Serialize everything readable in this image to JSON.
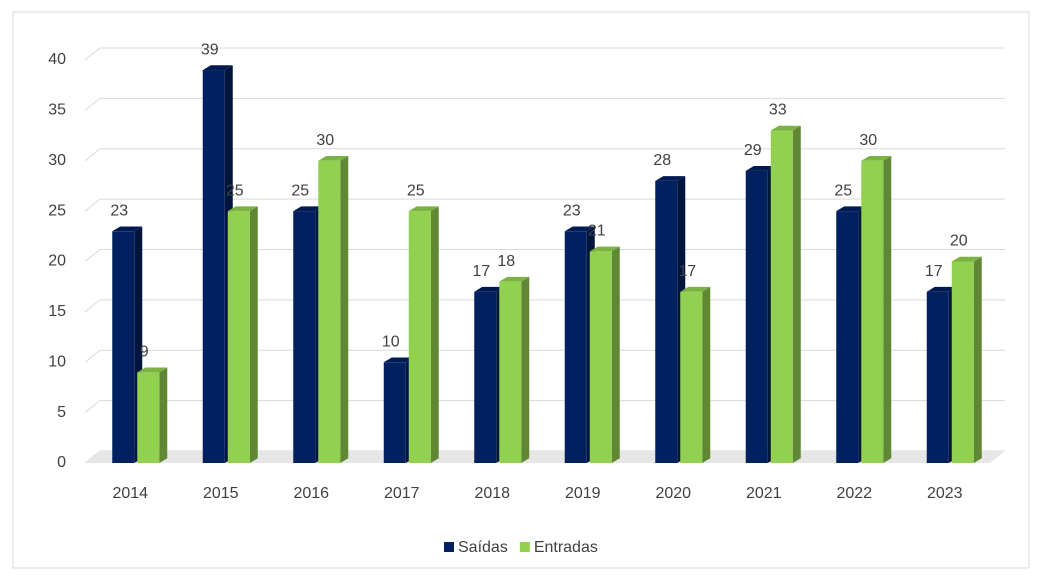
{
  "chart_data": {
    "type": "bar",
    "categories": [
      "2014",
      "2015",
      "2016",
      "2017",
      "2018",
      "2019",
      "2020",
      "2021",
      "2022",
      "2023"
    ],
    "series": [
      {
        "name": "Saídas",
        "color": "#002060",
        "values": [
          23,
          39,
          25,
          10,
          17,
          23,
          28,
          29,
          25,
          17
        ]
      },
      {
        "name": "Entradas",
        "color": "#92d050",
        "values": [
          9,
          25,
          30,
          25,
          18,
          21,
          17,
          33,
          30,
          20
        ]
      }
    ],
    "ylim": [
      0,
      40
    ],
    "yticks": [
      0,
      5,
      10,
      15,
      20,
      25,
      30,
      35,
      40
    ],
    "grid": true,
    "legend": "bottom"
  }
}
